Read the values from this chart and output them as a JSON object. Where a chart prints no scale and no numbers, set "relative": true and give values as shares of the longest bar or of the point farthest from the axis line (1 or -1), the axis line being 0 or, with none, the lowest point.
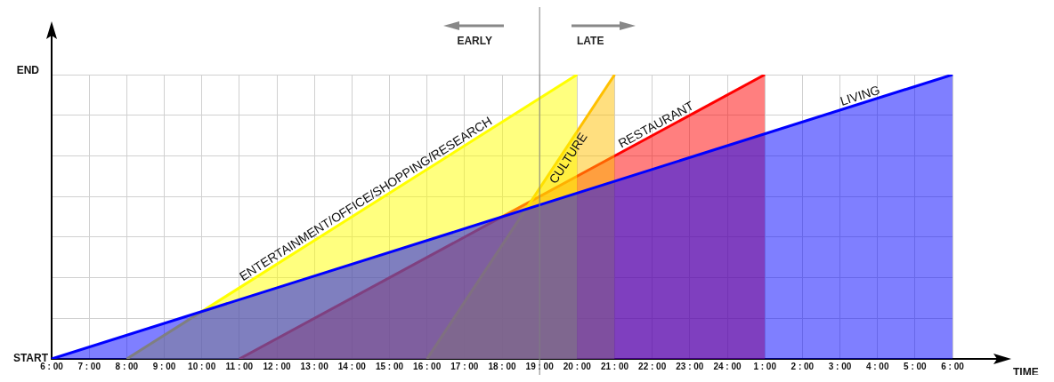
{
  "chart_data": {
    "type": "area",
    "xlabel": "TIME",
    "annotations": [
      "EARLY",
      "LATE",
      "START",
      "END"
    ],
    "categories": [
      "6 : 00",
      "7 : 00",
      "8 : 00",
      "9 : 00",
      "10 : 00",
      "11 : 00",
      "12 : 00",
      "13 : 00",
      "14 : 00",
      "15 : 00",
      "16 : 00",
      "17 : 00",
      "18 : 00",
      "19 : 00",
      "20 : 00",
      "21 : 00",
      "22 : 00",
      "23 : 00",
      "24 : 00",
      "1 : 00",
      "2 : 00",
      "3 : 00",
      "4 : 00",
      "5 : 00",
      "6 : 00"
    ],
    "relative": true,
    "grid": true,
    "legend": false,
    "ref_lines": [
      {
        "axis": "x",
        "value": "19 : 00",
        "color": "#808080"
      }
    ],
    "series": [
      {
        "name": "LIVING",
        "color": "#0000ff",
        "values": [
          0,
          null,
          null,
          null,
          null,
          null,
          null,
          null,
          null,
          null,
          null,
          null,
          null,
          null,
          null,
          null,
          null,
          null,
          null,
          null,
          null,
          null,
          null,
          null,
          1
        ]
      },
      {
        "name": "ENTERTAINMENT/OFFICE/SHOPPING/RESEARCH",
        "color": "#ffff00",
        "values": [
          null,
          null,
          0,
          null,
          null,
          null,
          null,
          null,
          null,
          null,
          null,
          null,
          null,
          null,
          1,
          null,
          null,
          null,
          null,
          null,
          null,
          null,
          null,
          null,
          null
        ]
      },
      {
        "name": "CULTURE",
        "color": "#ffc000",
        "values": [
          null,
          null,
          null,
          null,
          null,
          null,
          null,
          null,
          null,
          null,
          0,
          null,
          null,
          null,
          null,
          1,
          null,
          null,
          null,
          null,
          null,
          null,
          null,
          null,
          null
        ]
      },
      {
        "name": "RESTAURANT",
        "color": "#ff0000",
        "values": [
          null,
          null,
          null,
          null,
          null,
          0,
          null,
          null,
          null,
          null,
          null,
          null,
          null,
          null,
          null,
          null,
          null,
          null,
          null,
          1,
          null,
          null,
          null,
          null,
          null
        ]
      }
    ]
  }
}
